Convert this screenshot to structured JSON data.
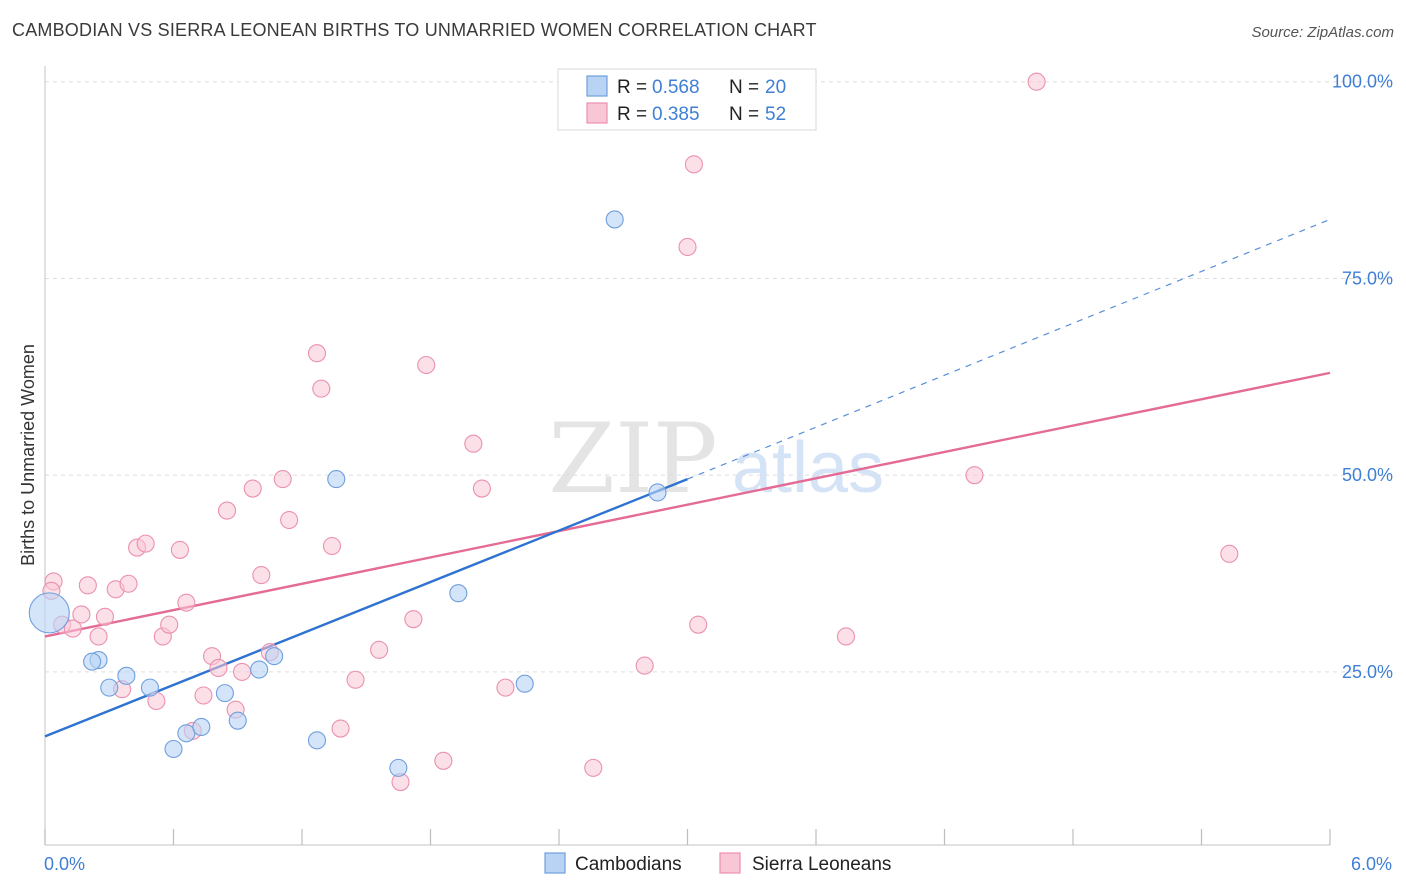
{
  "title": "CAMBODIAN VS SIERRA LEONEAN BIRTHS TO UNMARRIED WOMEN CORRELATION CHART",
  "source": "Source: ZipAtlas.com",
  "watermark": {
    "zip": "ZIP",
    "atlas": "atlas"
  },
  "colors": {
    "cambodians_fill": "#b9d3f5",
    "cambodians_stroke": "#6f9fdd",
    "cambodians_line": "#2f73d0",
    "sierra_fill": "#f9c6d6",
    "sierra_stroke": "#eb90b0",
    "sierra_line": "#e46b96",
    "tick_text": "#3f7fd6",
    "grid": "#dddddd"
  },
  "legend_top": [
    {
      "r_label": "R =",
      "r_value": "0.568",
      "n_label": "N =",
      "n_value": "20"
    },
    {
      "r_label": "R =",
      "r_value": "0.385",
      "n_label": "N =",
      "n_value": "52"
    }
  ],
  "legend_bottom": [
    "Cambodians",
    "Sierra Leoneans"
  ],
  "chart_data": {
    "type": "scatter",
    "title": "CAMBODIAN VS SIERRA LEONEAN BIRTHS TO UNMARRIED WOMEN CORRELATION CHART",
    "xlabel": "",
    "ylabel": "Births to Unmarried Women",
    "xlim": [
      0,
      6
    ],
    "ylim": [
      3,
      102
    ],
    "x_ticks": [
      0,
      0.6,
      1.2,
      1.8,
      2.4,
      3.0,
      3.6,
      4.2,
      4.8,
      5.4,
      6.0
    ],
    "x_tick_labels": [
      {
        "x": 0,
        "label": "0.0%"
      },
      {
        "x": 6,
        "label": "6.0%"
      }
    ],
    "y_tick_labels": [
      {
        "y": 25,
        "label": "25.0%"
      },
      {
        "y": 50,
        "label": "50.0%"
      },
      {
        "y": 75,
        "label": "75.0%"
      },
      {
        "y": 100,
        "label": "100.0%"
      }
    ],
    "grid": true,
    "legend_position": "top-center",
    "series": [
      {
        "name": "Cambodians",
        "r": 0.568,
        "n": 20,
        "trend": {
          "x0": 0,
          "y0": 16.8,
          "x1": 3.0,
          "y1": 49.5,
          "dash_x1": 6.0,
          "dash_y1": 82.5
        },
        "points": [
          [
            0.02,
            32.5
          ],
          [
            0.25,
            26.5
          ],
          [
            0.22,
            26.3
          ],
          [
            0.3,
            23.0
          ],
          [
            0.38,
            24.5
          ],
          [
            0.49,
            23.0
          ],
          [
            0.6,
            15.2
          ],
          [
            0.66,
            17.2
          ],
          [
            0.73,
            18.0
          ],
          [
            0.84,
            22.3
          ],
          [
            0.9,
            18.8
          ],
          [
            1.0,
            25.3
          ],
          [
            1.07,
            27.0
          ],
          [
            1.27,
            16.3
          ],
          [
            1.36,
            49.5
          ],
          [
            1.65,
            12.8
          ],
          [
            1.93,
            35.0
          ],
          [
            2.24,
            23.5
          ],
          [
            2.66,
            82.5
          ],
          [
            2.86,
            47.8
          ]
        ]
      },
      {
        "name": "Sierra Leoneans",
        "r": 0.385,
        "n": 52,
        "trend": {
          "x0": 0,
          "y0": 29.5,
          "x1": 6.0,
          "y1": 63.0
        },
        "points": [
          [
            0.04,
            36.5
          ],
          [
            0.03,
            35.3
          ],
          [
            0.08,
            31.0
          ],
          [
            0.13,
            30.5
          ],
          [
            0.17,
            32.3
          ],
          [
            0.2,
            36.0
          ],
          [
            0.25,
            29.5
          ],
          [
            0.28,
            32.0
          ],
          [
            0.33,
            35.5
          ],
          [
            0.36,
            22.8
          ],
          [
            0.39,
            36.2
          ],
          [
            0.43,
            40.8
          ],
          [
            0.47,
            41.3
          ],
          [
            0.52,
            21.3
          ],
          [
            0.55,
            29.5
          ],
          [
            0.58,
            31.0
          ],
          [
            0.63,
            40.5
          ],
          [
            0.66,
            33.8
          ],
          [
            0.69,
            17.5
          ],
          [
            0.74,
            22.0
          ],
          [
            0.78,
            27.0
          ],
          [
            0.81,
            25.5
          ],
          [
            0.85,
            45.5
          ],
          [
            0.89,
            20.2
          ],
          [
            0.92,
            25.0
          ],
          [
            0.97,
            48.3
          ],
          [
            1.01,
            37.3
          ],
          [
            1.05,
            27.5
          ],
          [
            1.11,
            49.5
          ],
          [
            1.14,
            44.3
          ],
          [
            1.27,
            65.5
          ],
          [
            1.29,
            61.0
          ],
          [
            1.34,
            41.0
          ],
          [
            1.38,
            17.8
          ],
          [
            1.45,
            24.0
          ],
          [
            1.56,
            27.8
          ],
          [
            1.66,
            11.0
          ],
          [
            1.72,
            31.7
          ],
          [
            1.78,
            64.0
          ],
          [
            1.86,
            13.7
          ],
          [
            2.0,
            54.0
          ],
          [
            2.04,
            48.3
          ],
          [
            2.15,
            23.0
          ],
          [
            2.56,
            12.8
          ],
          [
            2.8,
            25.8
          ],
          [
            3.0,
            79.0
          ],
          [
            3.03,
            89.5
          ],
          [
            3.05,
            31.0
          ],
          [
            3.74,
            29.5
          ],
          [
            4.34,
            50.0
          ],
          [
            4.63,
            100.0
          ],
          [
            5.53,
            40.0
          ]
        ]
      }
    ]
  }
}
